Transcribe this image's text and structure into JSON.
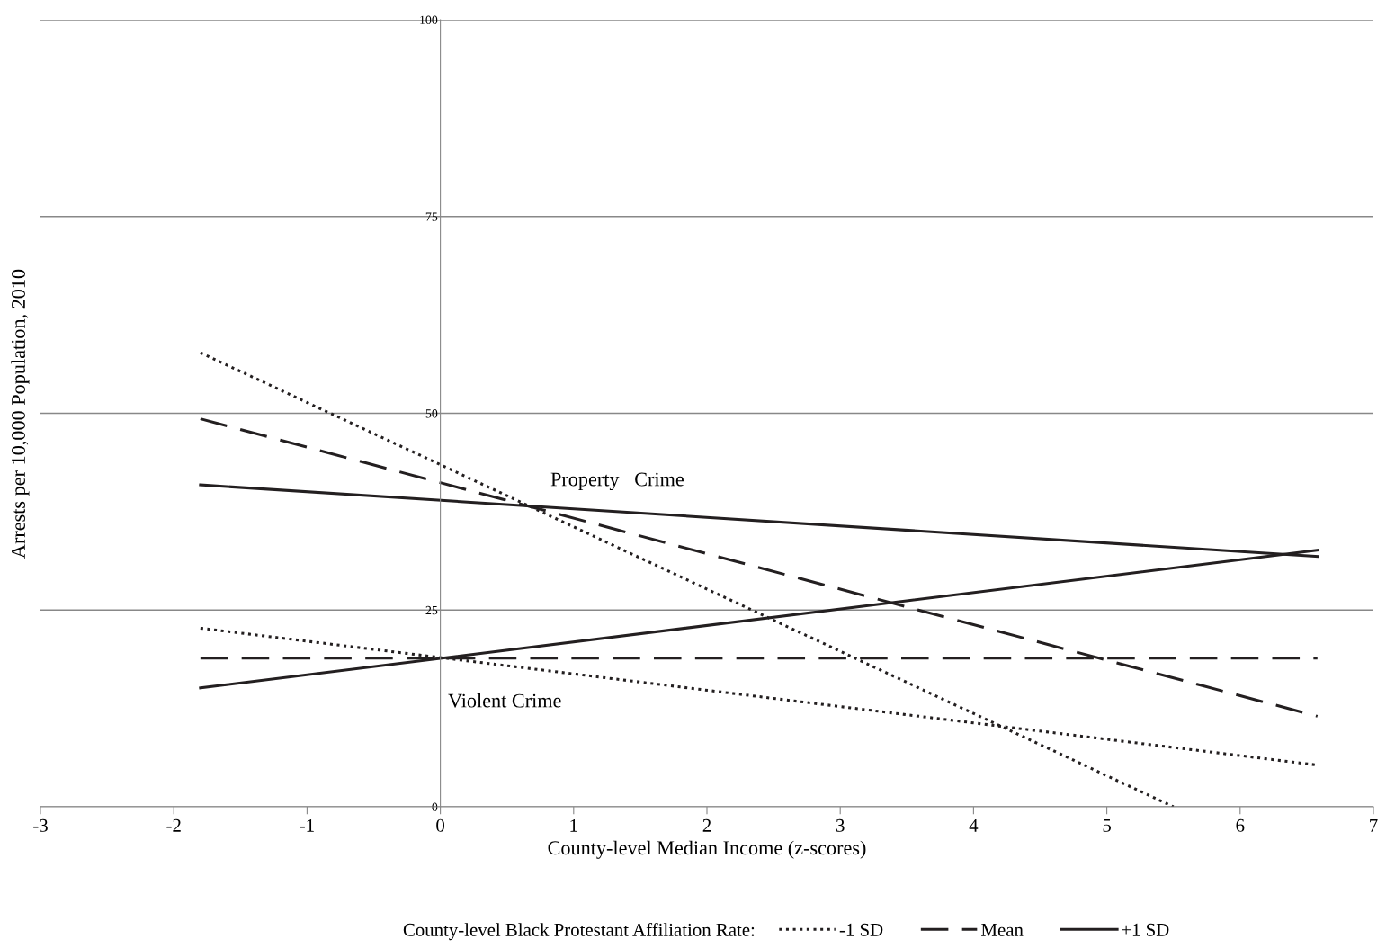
{
  "chart_data": {
    "type": "line",
    "xlabel": "County-level Median Income (z-scores)",
    "ylabel": "Arrests per 10,000 Population, 2010",
    "legend_title": "County-level Black Protestant Affiliation Rate:",
    "legend": "bottom",
    "grid": "y",
    "marker": "none",
    "xlim": [
      -3,
      7
    ],
    "xticks": [
      -3,
      -2,
      -1,
      0,
      1,
      2,
      3,
      4,
      5,
      6,
      7
    ],
    "ylim": [
      0,
      100
    ],
    "yticks": [
      0,
      25,
      50,
      75,
      100
    ],
    "series": [
      {
        "name": "-1 SD",
        "color": "#231f20",
        "line_style": "dotted",
        "x": [
          -1.8,
          5.5
        ],
        "values": [
          57.7,
          0
        ]
      },
      {
        "name": "Mean",
        "color": "#231f20",
        "line_style": "dashed",
        "x": [
          -1.8,
          6.58
        ],
        "values": [
          49.3,
          11.5
        ]
      },
      {
        "name": "+1 SD",
        "color": "#231f20",
        "line_style": "solid",
        "x": [
          -1.8,
          6.58
        ],
        "values": [
          40.9,
          31.8
        ]
      },
      {
        "color": "#231f20",
        "line_style": "dotted",
        "x": [
          -1.8,
          6.58
        ],
        "values": [
          22.7,
          5.3
        ]
      },
      {
        "color": "#231f20",
        "line_style": "dashed",
        "x": [
          -1.8,
          6.58
        ],
        "values": [
          18.9,
          18.9
        ]
      },
      {
        "color": "#231f20",
        "line_style": "solid",
        "x": [
          -1.8,
          6.58
        ],
        "values": [
          15.1,
          32.6
        ]
      }
    ],
    "annotations": [
      "Property   Crime",
      "Violent Crime"
    ]
  }
}
